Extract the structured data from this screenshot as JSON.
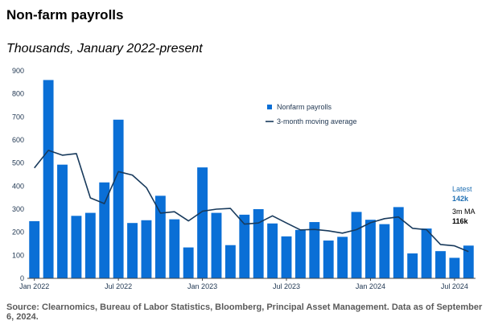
{
  "title": "Non-farm payrolls",
  "subtitle": "Thousands, January 2022-present",
  "source": "Source: Clearnomics, Bureau of Labor Statistics, Bloomberg, Principal Asset Management. Data as of September 6, 2024.",
  "colors": {
    "bar": "#0a6fd6",
    "line": "#183a5c",
    "axis": "#444444",
    "tick_text": "#1e3550",
    "latest_label": "#1f6fb3"
  },
  "chart_data": {
    "type": "bar",
    "ylim": [
      0,
      900
    ],
    "yticks": [
      0,
      100,
      200,
      300,
      400,
      500,
      600,
      700,
      800,
      900
    ],
    "xtick_labels": [
      {
        "index": 0,
        "label": "Jan 2022"
      },
      {
        "index": 6,
        "label": "Jul 2022"
      },
      {
        "index": 12,
        "label": "Jan 2023"
      },
      {
        "index": 18,
        "label": "Jul 2023"
      },
      {
        "index": 24,
        "label": "Jan 2024"
      },
      {
        "index": 30,
        "label": "Jul 2024"
      }
    ],
    "legend": {
      "placement": "top-right",
      "bar_label": "Nonfarm payrolls",
      "line_label": "3-month moving average"
    },
    "series": [
      {
        "name": "Nonfarm payrolls",
        "type": "bar",
        "values": [
          248,
          860,
          493,
          271,
          284,
          416,
          688,
          240,
          252,
          358,
          256,
          134,
          481,
          284,
          144,
          276,
          300,
          238,
          182,
          210,
          244,
          164,
          180,
          288,
          254,
          235,
          309,
          108,
          216,
          118,
          89,
          142
        ]
      },
      {
        "name": "3-month moving average",
        "type": "line",
        "values": [
          479,
          555,
          534,
          541,
          349,
          324,
          463,
          448,
          393,
          283,
          289,
          249,
          291,
          300,
          303,
          235,
          240,
          271,
          240,
          210,
          212,
          206,
          196,
          211,
          241,
          259,
          266,
          217,
          211,
          147,
          141,
          116
        ]
      }
    ],
    "annotations": [
      {
        "lines": [
          "Latest",
          "142k"
        ],
        "color": "latest"
      },
      {
        "lines": [
          "3m MA",
          "116k"
        ],
        "color": "dark"
      }
    ]
  }
}
